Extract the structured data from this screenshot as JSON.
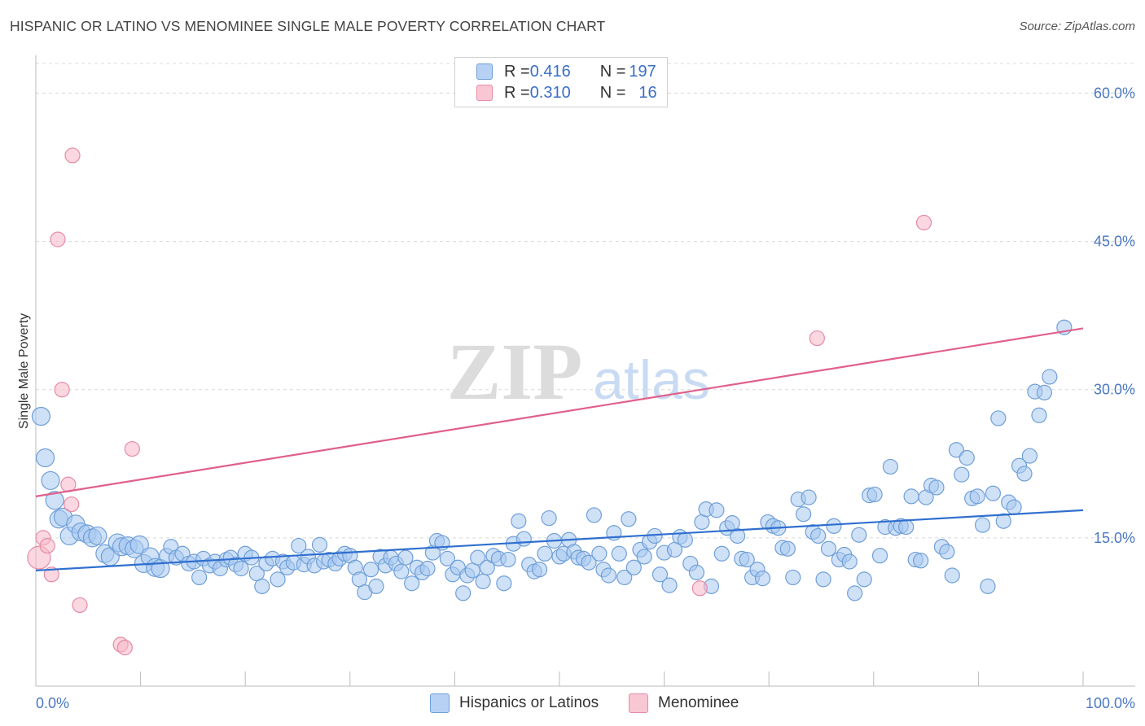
{
  "header": {
    "title": "HISPANIC OR LATINO VS MENOMINEE SINGLE MALE POVERTY CORRELATION CHART",
    "source": "Source: ZipAtlas.com"
  },
  "legend_top": {
    "rows": [
      {
        "r_label": "R = ",
        "r_value": "0.416",
        "n_label": "N = ",
        "n_value": "197"
      },
      {
        "r_label": "R = ",
        "r_value": "0.310",
        "n_label": "N = ",
        "n_value": "16"
      }
    ]
  },
  "watermark": {
    "zip": "ZIP",
    "atlas": "atlas"
  },
  "colors": {
    "blue_fill": "#a8c8f0",
    "blue_stroke": "#6f9fd8",
    "blue_line": "#2f6fcf",
    "pink_fill": "#f7b8c8",
    "pink_stroke": "#e68aa4",
    "pink_line": "#e0608a",
    "grid": "#d8d8d8",
    "axis_text": "#4a78c4"
  },
  "chart_data": {
    "type": "scatter",
    "title": "HISPANIC OR LATINO VS MENOMINEE SINGLE MALE POVERTY CORRELATION CHART",
    "xlabel": "",
    "ylabel": "Single Male Poverty",
    "xlim": [
      0,
      100
    ],
    "ylim": [
      0,
      63
    ],
    "x_tick_labels": [
      "0.0%",
      "100.0%"
    ],
    "y_ticks": [
      15,
      30,
      45,
      60
    ],
    "y_tick_labels": [
      "15.0%",
      "30.0%",
      "45.0%",
      "60.0%"
    ],
    "grid": true,
    "legend_placement": "bottom",
    "series": [
      {
        "name": "Hispanics or Latinos",
        "r": 0.416,
        "n": 197,
        "trend": {
          "x": [
            0,
            100
          ],
          "y": [
            11.7,
            17.8
          ]
        },
        "points": [
          [
            0.5,
            27.3
          ],
          [
            0.9,
            23.1
          ],
          [
            1.4,
            20.8
          ],
          [
            1.8,
            18.8
          ],
          [
            2.2,
            16.9
          ],
          [
            2.6,
            17.1
          ],
          [
            3.2,
            15.2
          ],
          [
            3.8,
            16.4
          ],
          [
            4.3,
            15.6
          ],
          [
            4.9,
            15.4
          ],
          [
            5.4,
            15.0
          ],
          [
            5.9,
            15.2
          ],
          [
            6.6,
            13.4
          ],
          [
            7.1,
            13.1
          ],
          [
            7.8,
            14.5
          ],
          [
            8.2,
            14.1
          ],
          [
            8.8,
            14.2
          ],
          [
            9.4,
            13.9
          ],
          [
            9.9,
            14.3
          ],
          [
            10.3,
            12.4
          ],
          [
            10.9,
            13.1
          ],
          [
            11.4,
            12.0
          ],
          [
            11.9,
            11.9
          ],
          [
            12.5,
            13.2
          ],
          [
            12.9,
            14.1
          ],
          [
            13.4,
            13.0
          ],
          [
            14.0,
            13.4
          ],
          [
            14.6,
            12.4
          ],
          [
            15.1,
            12.6
          ],
          [
            15.6,
            11.0
          ],
          [
            16.0,
            12.9
          ],
          [
            16.6,
            12.2
          ],
          [
            17.1,
            12.6
          ],
          [
            17.6,
            11.9
          ],
          [
            18.2,
            12.8
          ],
          [
            18.6,
            13.0
          ],
          [
            19.1,
            12.3
          ],
          [
            19.6,
            11.9
          ],
          [
            20.0,
            13.4
          ],
          [
            20.6,
            13.0
          ],
          [
            21.1,
            11.4
          ],
          [
            21.6,
            10.1
          ],
          [
            22.0,
            12.4
          ],
          [
            22.6,
            12.9
          ],
          [
            23.1,
            10.8
          ],
          [
            23.6,
            12.6
          ],
          [
            24.0,
            12.0
          ],
          [
            24.6,
            12.5
          ],
          [
            25.1,
            14.2
          ],
          [
            25.6,
            12.3
          ],
          [
            26.0,
            13.1
          ],
          [
            26.6,
            12.2
          ],
          [
            27.1,
            14.3
          ],
          [
            27.5,
            12.6
          ],
          [
            28.0,
            12.8
          ],
          [
            28.6,
            12.4
          ],
          [
            29.0,
            12.9
          ],
          [
            29.5,
            13.4
          ],
          [
            30.0,
            13.2
          ],
          [
            30.5,
            12.0
          ],
          [
            30.9,
            10.8
          ],
          [
            31.4,
            9.5
          ],
          [
            32.0,
            11.8
          ],
          [
            32.5,
            10.1
          ],
          [
            32.9,
            13.1
          ],
          [
            33.4,
            12.2
          ],
          [
            33.9,
            13.0
          ],
          [
            34.4,
            12.4
          ],
          [
            34.9,
            11.6
          ],
          [
            35.3,
            13.0
          ],
          [
            35.9,
            10.4
          ],
          [
            36.4,
            12.0
          ],
          [
            36.9,
            11.5
          ],
          [
            37.4,
            11.9
          ],
          [
            37.9,
            13.5
          ],
          [
            38.3,
            14.7
          ],
          [
            38.8,
            14.5
          ],
          [
            39.3,
            12.9
          ],
          [
            39.8,
            11.3
          ],
          [
            40.3,
            12.0
          ],
          [
            40.8,
            9.4
          ],
          [
            41.2,
            11.2
          ],
          [
            41.7,
            11.7
          ],
          [
            42.2,
            13.0
          ],
          [
            42.7,
            10.6
          ],
          [
            43.1,
            12.0
          ],
          [
            43.7,
            13.2
          ],
          [
            44.2,
            12.9
          ],
          [
            44.7,
            10.4
          ],
          [
            45.1,
            12.8
          ],
          [
            45.6,
            14.4
          ],
          [
            46.1,
            16.7
          ],
          [
            46.6,
            14.9
          ],
          [
            47.1,
            12.3
          ],
          [
            47.6,
            11.6
          ],
          [
            48.1,
            11.8
          ],
          [
            48.6,
            13.4
          ],
          [
            49.0,
            17.0
          ],
          [
            49.5,
            14.7
          ],
          [
            50.0,
            13.1
          ],
          [
            50.4,
            13.4
          ],
          [
            50.9,
            14.8
          ],
          [
            51.4,
            13.6
          ],
          [
            51.8,
            13.0
          ],
          [
            52.3,
            12.9
          ],
          [
            52.8,
            12.5
          ],
          [
            53.3,
            17.3
          ],
          [
            53.8,
            13.4
          ],
          [
            54.2,
            11.8
          ],
          [
            54.7,
            11.2
          ],
          [
            55.2,
            15.5
          ],
          [
            55.7,
            13.4
          ],
          [
            56.2,
            11.0
          ],
          [
            56.6,
            16.9
          ],
          [
            57.1,
            12.0
          ],
          [
            57.7,
            13.8
          ],
          [
            58.1,
            13.1
          ],
          [
            58.6,
            14.6
          ],
          [
            59.1,
            15.2
          ],
          [
            59.6,
            11.3
          ],
          [
            60.0,
            13.5
          ],
          [
            60.5,
            10.2
          ],
          [
            61.0,
            13.8
          ],
          [
            61.5,
            15.1
          ],
          [
            62.0,
            14.8
          ],
          [
            62.5,
            12.4
          ],
          [
            63.1,
            11.5
          ],
          [
            63.6,
            16.6
          ],
          [
            64.0,
            17.9
          ],
          [
            64.5,
            10.1
          ],
          [
            65.0,
            17.8
          ],
          [
            65.5,
            13.4
          ],
          [
            66.0,
            16.0
          ],
          [
            66.5,
            16.5
          ],
          [
            67.0,
            15.2
          ],
          [
            67.4,
            12.9
          ],
          [
            67.9,
            12.8
          ],
          [
            68.4,
            11.0
          ],
          [
            68.9,
            11.8
          ],
          [
            69.4,
            10.9
          ],
          [
            69.9,
            16.6
          ],
          [
            70.4,
            16.2
          ],
          [
            70.9,
            16.0
          ],
          [
            71.3,
            14.0
          ],
          [
            71.8,
            13.9
          ],
          [
            72.3,
            11.0
          ],
          [
            72.8,
            18.9
          ],
          [
            73.3,
            17.4
          ],
          [
            73.8,
            19.1
          ],
          [
            74.2,
            15.6
          ],
          [
            74.7,
            15.2
          ],
          [
            75.2,
            10.8
          ],
          [
            75.7,
            13.9
          ],
          [
            76.2,
            16.2
          ],
          [
            76.7,
            12.8
          ],
          [
            77.2,
            13.3
          ],
          [
            77.7,
            12.6
          ],
          [
            78.2,
            9.4
          ],
          [
            78.6,
            15.3
          ],
          [
            79.1,
            10.8
          ],
          [
            79.6,
            19.3
          ],
          [
            80.1,
            19.4
          ],
          [
            80.6,
            13.2
          ],
          [
            81.1,
            16.1
          ],
          [
            81.6,
            22.2
          ],
          [
            82.1,
            16.0
          ],
          [
            82.6,
            16.2
          ],
          [
            83.1,
            16.1
          ],
          [
            83.6,
            19.2
          ],
          [
            84.0,
            12.8
          ],
          [
            84.5,
            12.7
          ],
          [
            85.0,
            19.1
          ],
          [
            85.5,
            20.3
          ],
          [
            86.0,
            20.1
          ],
          [
            86.5,
            14.1
          ],
          [
            87.0,
            13.6
          ],
          [
            87.5,
            11.2
          ],
          [
            87.9,
            23.9
          ],
          [
            88.4,
            21.4
          ],
          [
            88.9,
            23.1
          ],
          [
            89.4,
            19.0
          ],
          [
            89.9,
            19.2
          ],
          [
            90.4,
            16.3
          ],
          [
            90.9,
            10.1
          ],
          [
            91.4,
            19.5
          ],
          [
            91.9,
            27.1
          ],
          [
            92.4,
            16.7
          ],
          [
            92.9,
            18.6
          ],
          [
            93.4,
            18.1
          ],
          [
            93.9,
            22.3
          ],
          [
            94.4,
            21.5
          ],
          [
            94.9,
            23.3
          ],
          [
            95.4,
            29.8
          ],
          [
            95.8,
            27.4
          ],
          [
            96.3,
            29.7
          ],
          [
            96.8,
            31.3
          ],
          [
            98.2,
            36.3
          ]
        ]
      },
      {
        "name": "Menominee",
        "r": 0.31,
        "n": 16,
        "trend": {
          "x": [
            0,
            100
          ],
          "y": [
            19.2,
            36.2
          ]
        },
        "points": [
          [
            0.3,
            13.0
          ],
          [
            0.7,
            15.0
          ],
          [
            1.1,
            14.2
          ],
          [
            1.5,
            11.3
          ],
          [
            2.1,
            45.2
          ],
          [
            2.5,
            30.0
          ],
          [
            3.1,
            20.4
          ],
          [
            3.4,
            18.4
          ],
          [
            3.5,
            53.7
          ],
          [
            4.2,
            8.2
          ],
          [
            8.1,
            4.2
          ],
          [
            8.5,
            3.9
          ],
          [
            9.2,
            24.0
          ],
          [
            63.4,
            9.9
          ],
          [
            74.6,
            35.2
          ],
          [
            84.8,
            46.9
          ]
        ]
      }
    ]
  },
  "bottom_legend": {
    "items": [
      {
        "label": "Hispanics or Latinos"
      },
      {
        "label": "Menominee"
      }
    ]
  }
}
